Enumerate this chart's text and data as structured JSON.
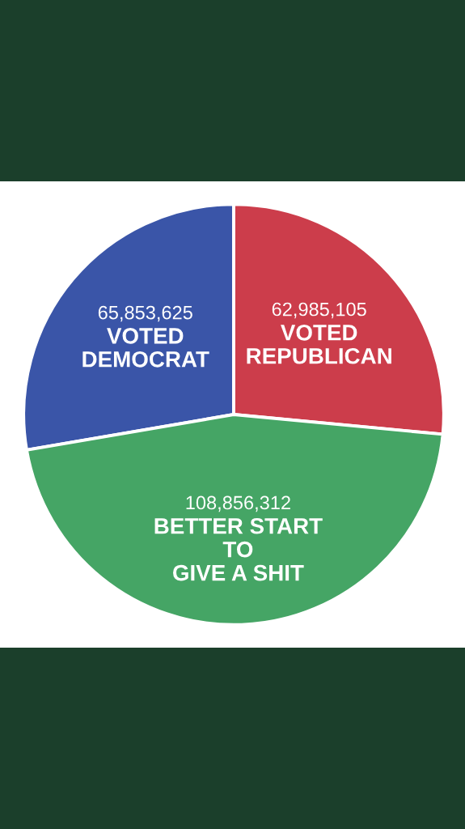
{
  "chart_data": {
    "type": "pie",
    "categories": [
      "VOTED\nDEMOCRAT",
      "VOTED\nREPUBLICAN",
      "BETTER START\nTO\nGIVE A SHIT"
    ],
    "values": [
      65853625,
      62985105,
      108856312
    ],
    "value_labels": [
      "65,853,625",
      "62,985,105",
      "108,856,312"
    ],
    "colors": [
      "#3a55a8",
      "#cc3d4b",
      "#45a565"
    ]
  }
}
